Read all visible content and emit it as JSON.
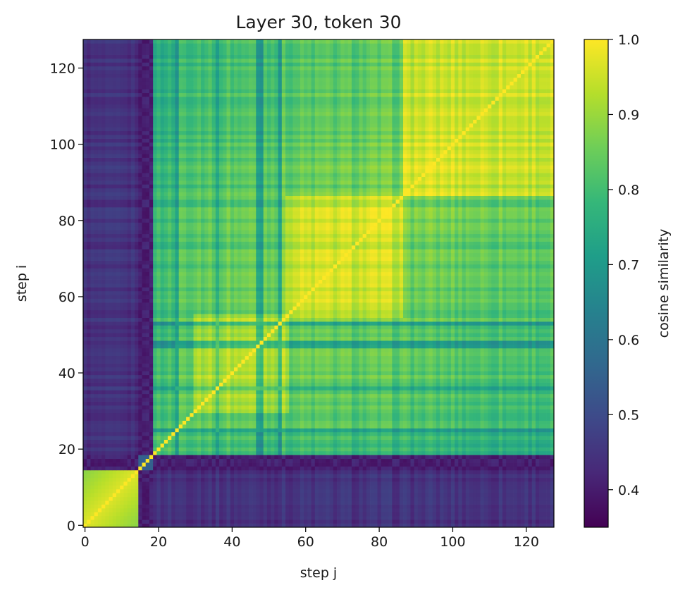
{
  "chart_data": {
    "type": "heatmap",
    "title": "Layer 30, token 30",
    "xlabel": "step j",
    "ylabel": "step i",
    "n": 128,
    "xlim": [
      0,
      127
    ],
    "ylim": [
      0,
      127
    ],
    "origin": "lower",
    "x_ticks": [
      0,
      20,
      40,
      60,
      80,
      100,
      120
    ],
    "y_ticks": [
      0,
      20,
      40,
      60,
      80,
      100,
      120
    ],
    "x_tick_labels": [
      "0",
      "20",
      "40",
      "60",
      "80",
      "100",
      "120"
    ],
    "y_tick_labels": [
      "0",
      "20",
      "40",
      "60",
      "80",
      "100",
      "120"
    ],
    "colormap": "viridis",
    "vmin": 0.35,
    "vmax": 1.0,
    "colorbar": {
      "label": "cosine similarity",
      "ticks": [
        0.4,
        0.5,
        0.6,
        0.7,
        0.8,
        0.9,
        1.0
      ],
      "tick_labels": [
        "0.4",
        "0.5",
        "0.6",
        "0.7",
        "0.8",
        "0.9",
        "1.0"
      ]
    },
    "structure": {
      "description_of_values": "symmetric similarity matrix; diagonal = 1.0",
      "blocks": [
        {
          "steps": [
            0,
            14
          ],
          "within_block_similarity": 0.97,
          "similarity_to_later_steps": 0.44
        },
        {
          "steps": [
            15,
            18
          ],
          "similarity_to_other_steps": 0.38
        },
        {
          "steps": [
            19,
            127
          ],
          "within_block_similarity": 0.86,
          "similarity_to_early_steps": 0.44
        }
      ],
      "sub_blocks": [
        {
          "steps": [
            30,
            55
          ],
          "within_block_similarity": 0.93
        },
        {
          "steps": [
            55,
            86
          ],
          "within_block_similarity": 0.95
        },
        {
          "steps": [
            87,
            127
          ],
          "within_block_similarity": 0.96
        }
      ],
      "dark_rows_cols": [
        17,
        25,
        36,
        47,
        48,
        53
      ],
      "diagonal_value": 1.0
    }
  },
  "colors": {
    "viridis_stops": [
      "#440154",
      "#482878",
      "#3e4989",
      "#31688e",
      "#26828e",
      "#1f9e89",
      "#35b779",
      "#6ece58",
      "#b5de2b",
      "#fde725"
    ],
    "axis": "#000000",
    "background": "#ffffff"
  }
}
